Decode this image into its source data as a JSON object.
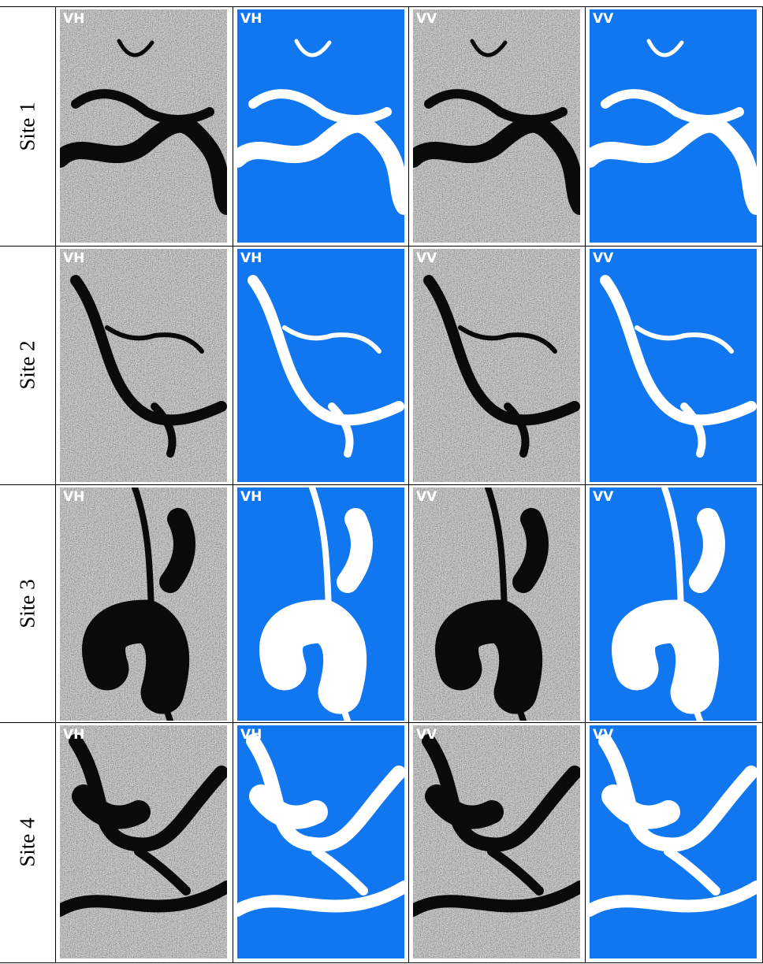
{
  "rows": [
    {
      "site": "Site 1",
      "panels": [
        "VH",
        "VH",
        "VV",
        "VV"
      ]
    },
    {
      "site": "Site 2",
      "panels": [
        "VH",
        "VH",
        "VV",
        "VV"
      ]
    },
    {
      "site": "Site 3",
      "panels": [
        "VH",
        "VH",
        "VV",
        "VV"
      ]
    },
    {
      "site": "Site 4",
      "panels": [
        "VH",
        "VH",
        "VV",
        "VV"
      ]
    }
  ]
}
